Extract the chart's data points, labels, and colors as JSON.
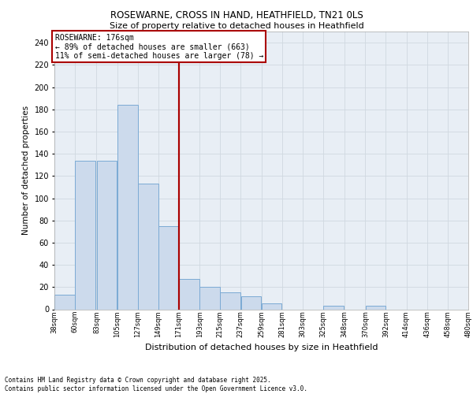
{
  "title1": "ROSEWARNE, CROSS IN HAND, HEATHFIELD, TN21 0LS",
  "title2": "Size of property relative to detached houses in Heathfield",
  "xlabel": "Distribution of detached houses by size in Heathfield",
  "ylabel": "Number of detached properties",
  "bin_labels": [
    "38sqm",
    "60sqm",
    "83sqm",
    "105sqm",
    "127sqm",
    "149sqm",
    "171sqm",
    "193sqm",
    "215sqm",
    "237sqm",
    "259sqm",
    "281sqm",
    "303sqm",
    "325sqm",
    "348sqm",
    "370sqm",
    "392sqm",
    "414sqm",
    "436sqm",
    "458sqm",
    "480sqm"
  ],
  "bins_left": [
    38,
    60,
    83,
    105,
    127,
    149,
    171,
    193,
    215,
    237,
    259,
    281,
    303,
    325,
    348,
    370,
    392,
    414,
    436,
    458
  ],
  "bin_width": 22,
  "values": [
    13,
    134,
    134,
    184,
    113,
    75,
    27,
    20,
    15,
    12,
    5,
    0,
    0,
    3,
    0,
    3,
    0,
    0,
    0,
    0
  ],
  "bar_color": "#ccdaec",
  "bar_edge_color": "#7baad4",
  "vline_x": 171,
  "vline_color": "#aa0000",
  "annotation_title": "ROSEWARNE: 176sqm",
  "annotation_line1": "← 89% of detached houses are smaller (663)",
  "annotation_line2": "11% of semi-detached houses are larger (78) →",
  "annotation_box_color": "#aa0000",
  "annotation_bg": "#ffffff",
  "ylim": [
    0,
    250
  ],
  "yticks": [
    0,
    20,
    40,
    60,
    80,
    100,
    120,
    140,
    160,
    180,
    200,
    220,
    240
  ],
  "grid_color": "#d0d8e0",
  "bg_color": "#e8eef5",
  "footer1": "Contains HM Land Registry data © Crown copyright and database right 2025.",
  "footer2": "Contains public sector information licensed under the Open Government Licence v3.0."
}
